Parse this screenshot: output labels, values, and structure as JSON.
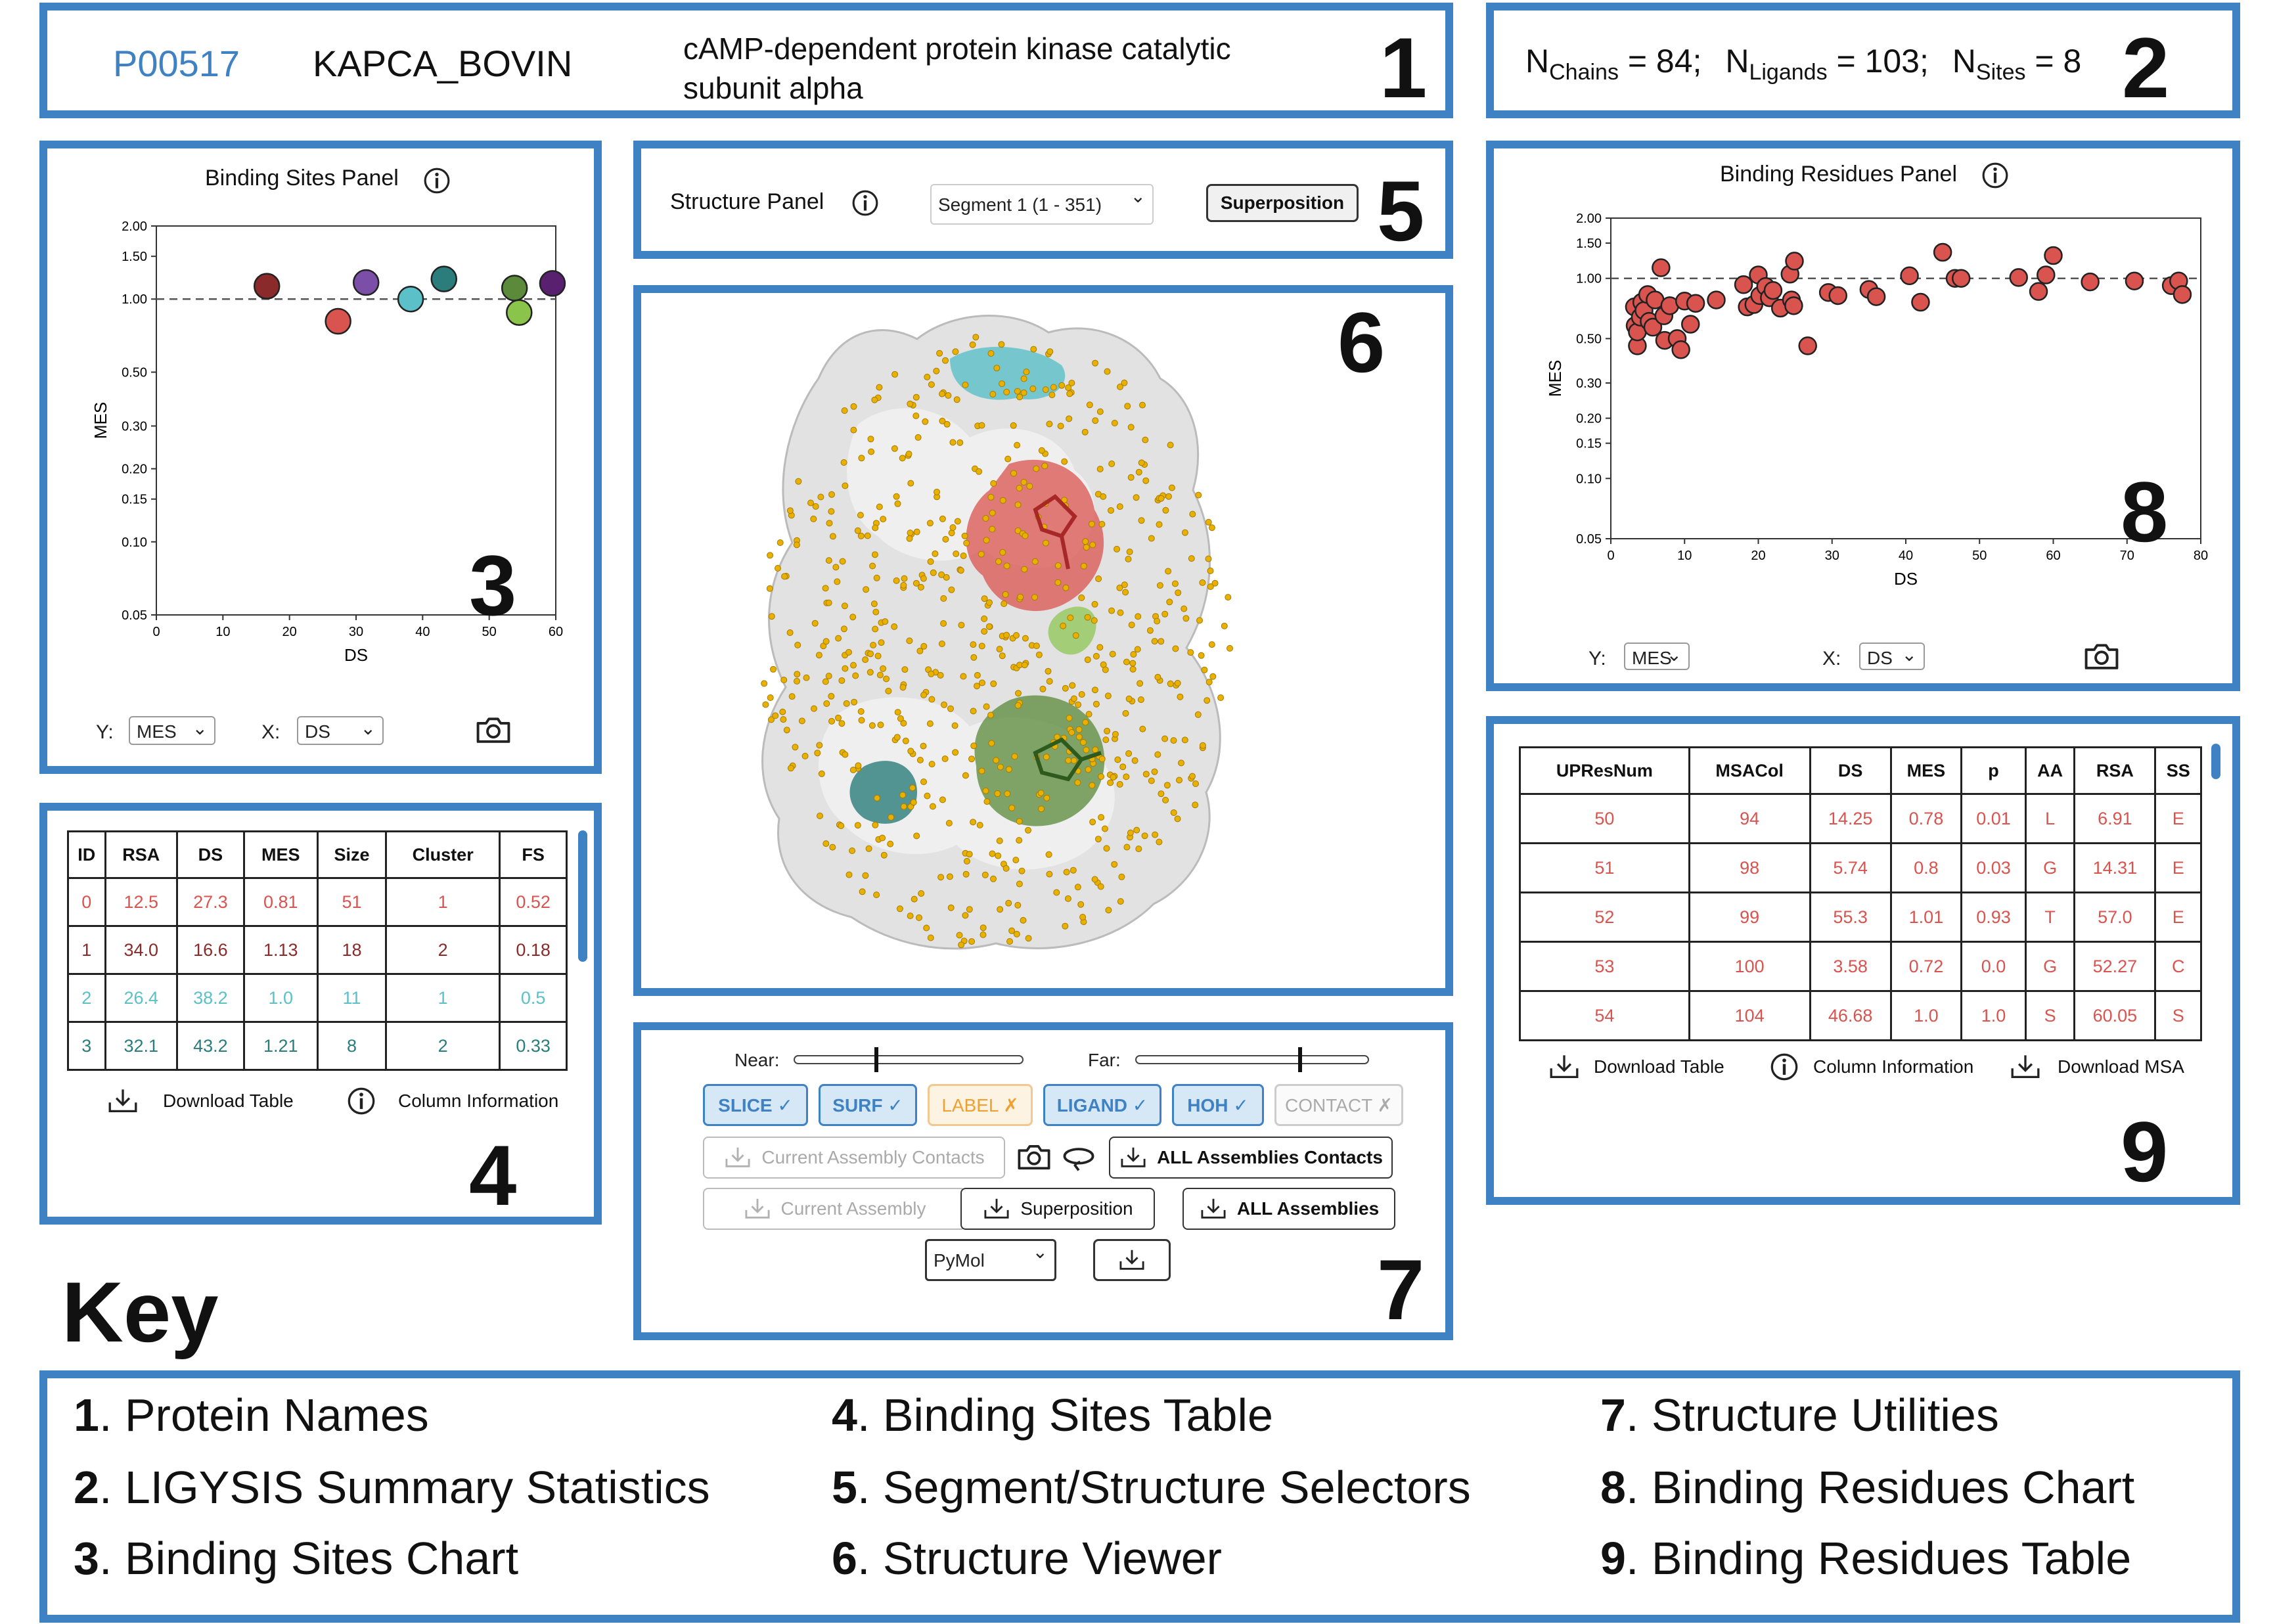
{
  "colors": {
    "panel_border": "#3f82c4",
    "accession": "#3f82c4",
    "point_red": "#d9534f",
    "ligand_active": "#3f82c4",
    "label_warn": "#f0a030"
  },
  "header": {
    "accession": "P00517",
    "entry_name": "KAPCA_BOVIN",
    "protein_name_line1": "cAMP-dependent protein kinase catalytic",
    "protein_name_line2": "subunit alpha"
  },
  "stats": {
    "chains_label": "N",
    "chains_sub": "Chains",
    "chains_val": " = 84;",
    "ligands_label": "N",
    "ligands_sub": "Ligands",
    "ligands_val": " = 103;",
    "sites_label": "N",
    "sites_sub": "Sites",
    "sites_val": " = 8"
  },
  "panel_numbers": {
    "p1": "1",
    "p2": "2",
    "p3": "3",
    "p4": "4",
    "p5": "5",
    "p6": "6",
    "p7": "7",
    "p8": "8",
    "p9": "9"
  },
  "sites_panel": {
    "title": "Binding Sites Panel",
    "info_icon": "info-icon",
    "y_label": "Y:",
    "y_value": "MES",
    "x_label": "X:",
    "x_value": "DS",
    "camera_icon": "camera-icon"
  },
  "residues_panel": {
    "title": "Binding Residues Panel",
    "info_icon": "info-icon",
    "y_label": "Y:",
    "y_value": "MES",
    "x_label": "X:",
    "x_value": "DS",
    "camera_icon": "camera-icon"
  },
  "chart_data": [
    {
      "type": "scatter",
      "title": "Binding Sites Panel",
      "xlabel": "DS",
      "ylabel": "MES",
      "xlim": [
        0,
        60
      ],
      "ylim": [
        0.05,
        2.0
      ],
      "yscale": "log",
      "xticks": [
        "0",
        "10",
        "20",
        "30",
        "40",
        "50",
        "60"
      ],
      "yticks": [
        "0.05",
        "0.10",
        "0.15",
        "0.20",
        "0.30",
        "0.50",
        "1.00",
        "1.50",
        "2.00"
      ],
      "reference_line": 1.0,
      "points": [
        {
          "x": 16.6,
          "y": 1.13,
          "color": "#8b2a2a"
        },
        {
          "x": 27.3,
          "y": 0.81,
          "color": "#d9534f"
        },
        {
          "x": 31.5,
          "y": 1.17,
          "color": "#7b4fa8"
        },
        {
          "x": 38.2,
          "y": 1.0,
          "color": "#5bc0c8"
        },
        {
          "x": 43.2,
          "y": 1.21,
          "color": "#2a7d7a"
        },
        {
          "x": 53.8,
          "y": 1.11,
          "color": "#5a8a3a"
        },
        {
          "x": 54.5,
          "y": 0.88,
          "color": "#8ac44a"
        },
        {
          "x": 59.5,
          "y": 1.16,
          "color": "#5a2070"
        }
      ]
    },
    {
      "type": "scatter",
      "title": "Binding Residues Panel",
      "xlabel": "DS",
      "ylabel": "MES",
      "xlim": [
        0,
        80
      ],
      "ylim": [
        0.05,
        2.0
      ],
      "yscale": "log",
      "xticks": [
        "0",
        "10",
        "20",
        "30",
        "40",
        "50",
        "60",
        "70",
        "80"
      ],
      "yticks": [
        "0.05",
        "0.10",
        "0.15",
        "0.20",
        "0.30",
        "0.50",
        "1.00",
        "1.50",
        "2.00"
      ],
      "reference_line": 1.0,
      "color": "#d9534f",
      "points": [
        {
          "x": 3.2,
          "y": 0.72
        },
        {
          "x": 3.3,
          "y": 0.58
        },
        {
          "x": 3.6,
          "y": 0.46
        },
        {
          "x": 3.6,
          "y": 0.54
        },
        {
          "x": 4.0,
          "y": 0.64
        },
        {
          "x": 4.2,
          "y": 0.76
        },
        {
          "x": 4.5,
          "y": 0.69
        },
        {
          "x": 5.0,
          "y": 0.83
        },
        {
          "x": 5.2,
          "y": 0.61
        },
        {
          "x": 5.7,
          "y": 0.57
        },
        {
          "x": 6.0,
          "y": 0.78
        },
        {
          "x": 6.8,
          "y": 1.13
        },
        {
          "x": 7.2,
          "y": 0.65
        },
        {
          "x": 7.3,
          "y": 0.49
        },
        {
          "x": 8.0,
          "y": 0.73
        },
        {
          "x": 9.0,
          "y": 0.5
        },
        {
          "x": 9.5,
          "y": 0.44
        },
        {
          "x": 10.0,
          "y": 0.77
        },
        {
          "x": 10.8,
          "y": 0.59
        },
        {
          "x": 11.5,
          "y": 0.75
        },
        {
          "x": 14.3,
          "y": 0.78
        },
        {
          "x": 18.0,
          "y": 0.93
        },
        {
          "x": 18.5,
          "y": 0.72
        },
        {
          "x": 19.4,
          "y": 0.74
        },
        {
          "x": 20.0,
          "y": 1.04
        },
        {
          "x": 20.2,
          "y": 0.82
        },
        {
          "x": 21.0,
          "y": 0.91
        },
        {
          "x": 21.5,
          "y": 0.8
        },
        {
          "x": 22.0,
          "y": 0.87
        },
        {
          "x": 23.0,
          "y": 0.71
        },
        {
          "x": 24.3,
          "y": 1.05
        },
        {
          "x": 24.5,
          "y": 0.78
        },
        {
          "x": 24.8,
          "y": 0.73
        },
        {
          "x": 24.9,
          "y": 1.22
        },
        {
          "x": 26.7,
          "y": 0.46
        },
        {
          "x": 29.5,
          "y": 0.85
        },
        {
          "x": 30.8,
          "y": 0.82
        },
        {
          "x": 35.0,
          "y": 0.88
        },
        {
          "x": 36.0,
          "y": 0.81
        },
        {
          "x": 40.5,
          "y": 1.03
        },
        {
          "x": 42.0,
          "y": 0.76
        },
        {
          "x": 45.0,
          "y": 1.35
        },
        {
          "x": 46.68,
          "y": 1.0
        },
        {
          "x": 47.5,
          "y": 1.0
        },
        {
          "x": 55.3,
          "y": 1.01
        },
        {
          "x": 58.0,
          "y": 0.86
        },
        {
          "x": 59.0,
          "y": 1.04
        },
        {
          "x": 60.0,
          "y": 1.3
        },
        {
          "x": 65.0,
          "y": 0.96
        },
        {
          "x": 71.0,
          "y": 0.97
        },
        {
          "x": 76.0,
          "y": 0.92
        },
        {
          "x": 77.0,
          "y": 0.97
        },
        {
          "x": 77.5,
          "y": 0.83
        }
      ]
    }
  ],
  "sites_table": {
    "headers": [
      "ID",
      "RSA",
      "DS",
      "MES",
      "Size",
      "Cluster",
      "FS"
    ],
    "rows": [
      {
        "cells": [
          "0",
          "12.5",
          "27.3",
          "0.81",
          "51",
          "1",
          "0.52"
        ],
        "color": "#d9534f"
      },
      {
        "cells": [
          "1",
          "34.0",
          "16.6",
          "1.13",
          "18",
          "2",
          "0.18"
        ],
        "color": "#8b2a2a"
      },
      {
        "cells": [
          "2",
          "26.4",
          "38.2",
          "1.0",
          "11",
          "1",
          "0.5"
        ],
        "color": "#5bc0c8"
      },
      {
        "cells": [
          "3",
          "32.1",
          "43.2",
          "1.21",
          "8",
          "2",
          "0.33"
        ],
        "color": "#2a7d7a"
      }
    ],
    "download_label": "Download Table",
    "info_label": "Column Information"
  },
  "residues_table": {
    "headers": [
      "UPResNum",
      "MSACol",
      "DS",
      "MES",
      "p",
      "AA",
      "RSA",
      "SS"
    ],
    "rows": [
      [
        "50",
        "94",
        "14.25",
        "0.78",
        "0.01",
        "L",
        "6.91",
        "E"
      ],
      [
        "51",
        "98",
        "5.74",
        "0.8",
        "0.03",
        "G",
        "14.31",
        "E"
      ],
      [
        "52",
        "99",
        "55.3",
        "1.01",
        "0.93",
        "T",
        "57.0",
        "E"
      ],
      [
        "53",
        "100",
        "3.58",
        "0.72",
        "0.0",
        "G",
        "52.27",
        "C"
      ],
      [
        "54",
        "104",
        "46.68",
        "1.0",
        "1.0",
        "S",
        "60.05",
        "S"
      ]
    ],
    "download_table_label": "Download Table",
    "info_label": "Column Information",
    "download_msa_label": "Download MSA"
  },
  "structure_panel": {
    "title": "Structure Panel",
    "segment_value": "Segment 1 (1 - 351)",
    "superposition_label": "Superposition"
  },
  "utilities": {
    "near_label": "Near:",
    "near_value": 0.35,
    "far_label": "Far:",
    "far_value": 0.7,
    "toggles": [
      {
        "label": "SLICE ✓",
        "state": "on"
      },
      {
        "label": "SURF ✓",
        "state": "on"
      },
      {
        "label": "LABEL ✗",
        "state": "warn"
      },
      {
        "label": "LIGAND ✓",
        "state": "on"
      },
      {
        "label": "HOH ✓",
        "state": "on"
      },
      {
        "label": "CONTACT ✗",
        "state": "off"
      }
    ],
    "current_assembly_contacts": "Current Assembly Contacts",
    "all_assemblies_contacts": "ALL Assemblies Contacts",
    "current_assembly": "Current Assembly",
    "superposition": "Superposition",
    "all_assemblies": "ALL Assemblies",
    "format_value": "PyMol"
  },
  "key": {
    "title": "Key",
    "items": [
      {
        "n": "1",
        "text": ". Protein Names"
      },
      {
        "n": "2",
        "text": ". LIGYSIS Summary Statistics"
      },
      {
        "n": "3",
        "text": ". Binding Sites Chart"
      },
      {
        "n": "4",
        "text": ". Binding Sites Table"
      },
      {
        "n": "5",
        "text": ". Segment/Structure Selectors"
      },
      {
        "n": "6",
        "text": ". Structure Viewer"
      },
      {
        "n": "7",
        "text": ". Structure Utilities"
      },
      {
        "n": "8",
        "text": ". Binding Residues Chart"
      },
      {
        "n": "9",
        "text": ". Binding Residues Table"
      }
    ]
  }
}
